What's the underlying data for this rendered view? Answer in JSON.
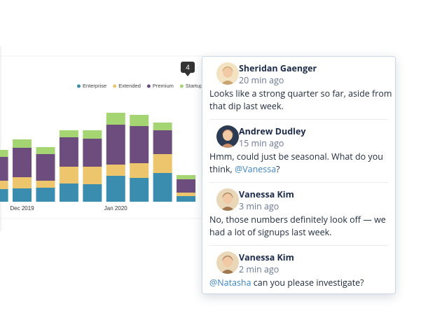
{
  "chart_data": {
    "type": "bar",
    "stacked": true,
    "categories": [
      null,
      "Dec 2019",
      null,
      null,
      null,
      "Jan 2020",
      null,
      null,
      null
    ],
    "series": [
      {
        "name": "Enterprise",
        "color": "#3b8db0",
        "values": [
          18,
          19,
          20,
          26,
          25,
          37,
          34,
          41,
          8
        ]
      },
      {
        "name": "Extended",
        "color": "#ecc56c",
        "values": [
          12,
          16,
          10,
          24,
          25,
          16,
          21,
          27,
          5
        ]
      },
      {
        "name": "Premium",
        "color": "#6c4d7e",
        "values": [
          34,
          42,
          38,
          42,
          40,
          57,
          53,
          34,
          19
        ]
      },
      {
        "name": "Startup",
        "color": "#a5d473",
        "values": [
          10,
          12,
          10,
          10,
          12,
          17,
          16,
          11,
          6
        ]
      }
    ],
    "ylim": [
      0,
      130
    ],
    "legend": "top-right"
  },
  "comment_count": 4,
  "comments": [
    {
      "author": "Sheridan Gaenger",
      "time": "20 min ago",
      "text": [
        {
          "text": "Looks like a strong quarter so far, aside from that dip last week.",
          "mention": false
        }
      ]
    },
    {
      "author": "Andrew Dudley",
      "time": "15 min ago",
      "text": [
        {
          "text": "Hmm, could just be seasonal. What do you think, ",
          "mention": false
        },
        {
          "text": "@Vanessa",
          "mention": true
        },
        {
          "text": "?",
          "mention": false
        }
      ]
    },
    {
      "author": "Vanessa Kim",
      "time": "3 min ago",
      "text": [
        {
          "text": "No, those numbers definitely look off — we had a lot of signups last week.",
          "mention": false
        }
      ]
    },
    {
      "author": "Vanessa Kim",
      "time": "2 min ago",
      "text": [
        {
          "text": "@Natasha",
          "mention": true
        },
        {
          "text": " can you please investigate?",
          "mention": false
        }
      ]
    }
  ]
}
